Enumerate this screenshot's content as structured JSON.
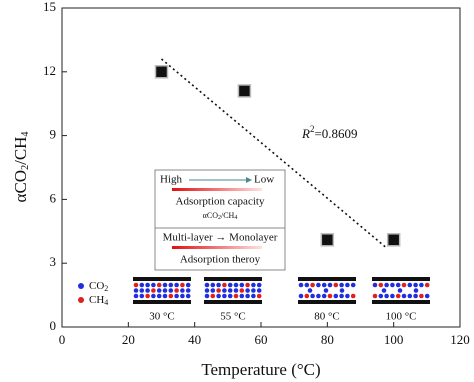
{
  "chart_data": {
    "type": "scatter",
    "xlabel": "Temperature (°C)",
    "ylabel": [
      "αCO",
      "2",
      "/CH",
      "4"
    ],
    "x": [
      30,
      55,
      80,
      100
    ],
    "y": [
      12,
      11.1,
      4.1,
      4.1
    ],
    "color": "#111111",
    "xlim": [
      0,
      120
    ],
    "ylim": [
      0,
      15
    ],
    "xticks": [
      0,
      20,
      40,
      60,
      80,
      100,
      120
    ],
    "yticks": [
      0,
      3,
      6,
      9,
      12,
      15
    ],
    "trendline": {
      "x": [
        30,
        98
      ],
      "y": [
        12.6,
        3.7
      ]
    },
    "annotation": {
      "symbol": "R",
      "sup": "2",
      "text": "=0.8609"
    },
    "inset": {
      "high": "High",
      "low": "Low",
      "capacity": "Adsorption capacity",
      "capacity_sub": [
        "αCO",
        "2",
        "/CH",
        "4"
      ],
      "layers": "Multi-layer → Monolayer",
      "theory": "Adsorption theroy"
    },
    "legend": [
      {
        "parts": [
          "CO",
          "2"
        ],
        "color": "#1f2fe0"
      },
      {
        "parts": [
          "CH",
          "4"
        ],
        "color": "#e0201a"
      }
    ],
    "pore_labels": [
      "30 °C",
      "55 °C",
      "80 °C",
      "100 °C"
    ]
  }
}
